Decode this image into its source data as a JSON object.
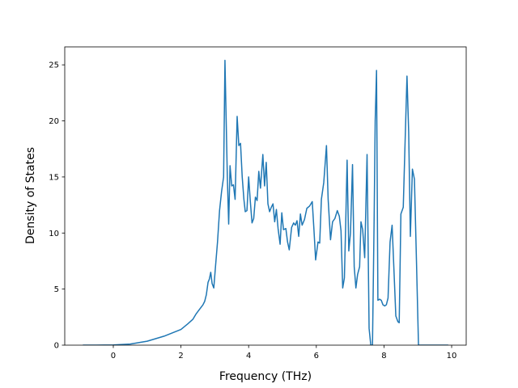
{
  "chart_data": {
    "type": "line",
    "xlabel": "Frequency (THz)",
    "ylabel": "Density of States",
    "xlim": [
      -1.435,
      10.43
    ],
    "ylim": [
      0,
      26.6
    ],
    "xticks": [
      0,
      2,
      4,
      6,
      8,
      10
    ],
    "yticks": [
      0,
      5,
      10,
      15,
      20,
      25
    ],
    "series": [
      {
        "color": "#1f77b4",
        "x": [
          -0.9,
          -0.5,
          0,
          0.5,
          1.0,
          1.5,
          2.0,
          2.2,
          2.35,
          2.45,
          2.55,
          2.65,
          2.7,
          2.75,
          2.8,
          2.84,
          2.88,
          2.92,
          2.97,
          3.02,
          3.08,
          3.14,
          3.2,
          3.26,
          3.3,
          3.37,
          3.41,
          3.45,
          3.5,
          3.55,
          3.6,
          3.66,
          3.71,
          3.76,
          3.81,
          3.86,
          3.9,
          3.95,
          4.0,
          4.05,
          4.1,
          4.15,
          4.2,
          4.25,
          4.3,
          4.35,
          4.42,
          4.47,
          4.52,
          4.57,
          4.62,
          4.67,
          4.72,
          4.77,
          4.82,
          4.87,
          4.93,
          4.98,
          5.03,
          5.1,
          5.15,
          5.2,
          5.27,
          5.33,
          5.38,
          5.43,
          5.48,
          5.53,
          5.58,
          5.65,
          5.72,
          5.8,
          5.88,
          5.93,
          5.98,
          6.05,
          6.1,
          6.15,
          6.22,
          6.3,
          6.35,
          6.42,
          6.48,
          6.55,
          6.62,
          6.68,
          6.73,
          6.78,
          6.83,
          6.87,
          6.91,
          6.96,
          7.01,
          7.07,
          7.12,
          7.17,
          7.22,
          7.28,
          7.32,
          7.37,
          7.43,
          7.5,
          7.56,
          7.61,
          7.66,
          7.71,
          7.74,
          7.78,
          7.82,
          7.87,
          7.92,
          7.97,
          8.02,
          8.07,
          8.12,
          8.18,
          8.24,
          8.3,
          8.35,
          8.41,
          8.45,
          8.5,
          8.57,
          8.62,
          8.68,
          8.73,
          8.78,
          8.84,
          8.9,
          8.96,
          9.02,
          9.9
        ],
        "values": [
          0,
          0,
          0.02,
          0.1,
          0.35,
          0.8,
          1.4,
          1.9,
          2.3,
          2.8,
          3.2,
          3.6,
          3.9,
          4.5,
          5.6,
          5.9,
          6.5,
          5.5,
          5.1,
          7,
          9.2,
          12,
          13.7,
          15,
          25.4,
          15,
          10.8,
          16,
          14.2,
          14.3,
          13,
          20.4,
          17.8,
          18,
          15,
          13,
          11.9,
          12,
          15,
          12.8,
          10.9,
          11.3,
          13.2,
          12.9,
          15.5,
          14,
          17,
          14.2,
          16.3,
          12.6,
          11.9,
          12.3,
          12.6,
          11,
          12.1,
          10.4,
          9,
          11.8,
          10.3,
          10.4,
          9.2,
          8.5,
          10.5,
          10.9,
          10.7,
          11.1,
          9.7,
          11.7,
          10.7,
          11.2,
          12.2,
          12.4,
          12.8,
          10.3,
          7.6,
          9.2,
          9.1,
          13,
          14.5,
          17.8,
          13,
          9.4,
          11,
          11.3,
          12,
          11.5,
          10.2,
          5.1,
          6,
          11,
          16.5,
          8.4,
          10,
          16.1,
          7,
          5.1,
          6.3,
          7,
          11,
          10.3,
          7.8,
          17,
          1.5,
          0,
          0,
          11.5,
          20,
          24.5,
          4,
          4.1,
          4,
          3.6,
          3.5,
          3.6,
          4.2,
          9.2,
          10.7,
          6.3,
          2.6,
          2.1,
          2,
          11.7,
          12.3,
          17.7,
          24,
          19,
          9.7,
          15.7,
          14.8,
          7.5,
          0,
          0
        ]
      }
    ]
  }
}
